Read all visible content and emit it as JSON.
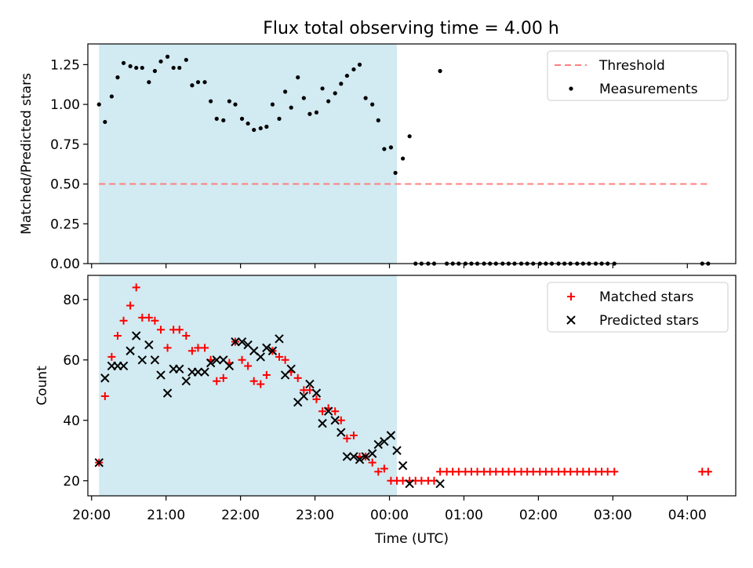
{
  "figure": {
    "title": "Flux total observing time = 4.00 h"
  },
  "colors": {
    "band": "#add8e6",
    "threshold": "#ff7f7f",
    "matched": "#ff0000",
    "predicted": "#000000",
    "measurement": "#000000"
  },
  "chart_data": [
    {
      "type": "scatter",
      "panel": "top",
      "ylabel": "Matched/Predicted stars",
      "ylim": [
        0,
        1.38
      ],
      "yticks": [
        "0.00",
        "0.25",
        "0.50",
        "0.75",
        "1.00",
        "1.25"
      ],
      "ytick_values": [
        0,
        0.25,
        0.5,
        0.75,
        1.0,
        1.25
      ],
      "xlim": [
        19.95,
        28.65
      ],
      "observing_window": [
        20.1,
        24.1
      ],
      "legend_position": "top-right",
      "threshold": {
        "name": "Threshold",
        "value": 0.5,
        "x_range": [
          20.1,
          28.3
        ],
        "style": "dashed"
      },
      "series": [
        {
          "name": "Measurements",
          "x": [
            20.1,
            20.18,
            20.27,
            20.35,
            20.43,
            20.52,
            20.6,
            20.68,
            20.77,
            20.85,
            20.93,
            21.02,
            21.1,
            21.18,
            21.27,
            21.35,
            21.43,
            21.52,
            21.6,
            21.68,
            21.77,
            21.85,
            21.93,
            22.02,
            22.1,
            22.18,
            22.27,
            22.35,
            22.43,
            22.52,
            22.6,
            22.68,
            22.77,
            22.85,
            22.93,
            23.02,
            23.1,
            23.18,
            23.27,
            23.35,
            23.43,
            23.52,
            23.6,
            23.68,
            23.77,
            23.85,
            23.93,
            24.02,
            24.08,
            24.18,
            24.27,
            24.35,
            24.43,
            24.52,
            24.6,
            24.68,
            24.77,
            24.85,
            24.93,
            25.02,
            25.1,
            25.18,
            25.27,
            25.35,
            25.43,
            25.52,
            25.6,
            25.68,
            25.77,
            25.85,
            25.93,
            26.02,
            26.1,
            26.18,
            26.27,
            26.35,
            26.43,
            26.52,
            26.6,
            26.68,
            26.77,
            26.85,
            26.93,
            27.02,
            28.2,
            28.28
          ],
          "y": [
            1.0,
            0.89,
            1.05,
            1.17,
            1.26,
            1.24,
            1.23,
            1.23,
            1.14,
            1.21,
            1.27,
            1.3,
            1.23,
            1.23,
            1.28,
            1.12,
            1.14,
            1.14,
            1.02,
            0.91,
            0.9,
            1.02,
            1.0,
            0.91,
            0.88,
            0.84,
            0.85,
            0.86,
            1.0,
            0.91,
            1.08,
            0.98,
            1.17,
            1.04,
            0.94,
            0.95,
            1.1,
            1.02,
            1.07,
            1.13,
            1.18,
            1.22,
            1.25,
            1.04,
            1.0,
            0.9,
            0.72,
            0.73,
            0.57,
            0.66,
            0.8,
            0.0,
            0.0,
            0.0,
            0.0,
            1.21,
            0.0,
            0.0,
            0.0,
            0.0,
            0.0,
            0.0,
            0.0,
            0.0,
            0.0,
            0.0,
            0.0,
            0.0,
            0.0,
            0.0,
            0.0,
            0.0,
            0.0,
            0.0,
            0.0,
            0.0,
            0.0,
            0.0,
            0.0,
            0.0,
            0.0,
            0.0,
            0.0,
            0.0,
            0.0,
            0.0
          ]
        }
      ],
      "legend": [
        "Threshold",
        "Measurements"
      ]
    },
    {
      "type": "scatter",
      "panel": "bottom",
      "ylabel": "Count",
      "xlabel": "Time (UTC)",
      "ylim": [
        15,
        88
      ],
      "yticks": [
        "20",
        "40",
        "60",
        "80"
      ],
      "ytick_values": [
        20,
        40,
        60,
        80
      ],
      "xlim": [
        19.95,
        28.65
      ],
      "xtick_values": [
        20,
        21,
        22,
        23,
        24,
        25,
        26,
        27,
        28
      ],
      "xticks": [
        "20:00",
        "21:00",
        "22:00",
        "23:00",
        "00:00",
        "01:00",
        "02:00",
        "03:00",
        "04:00"
      ],
      "observing_window": [
        20.1,
        24.1
      ],
      "legend_position": "top-right",
      "series": [
        {
          "name": "Matched stars",
          "marker": "+",
          "x": [
            20.1,
            20.18,
            20.27,
            20.35,
            20.43,
            20.52,
            20.6,
            20.68,
            20.77,
            20.85,
            20.93,
            21.02,
            21.1,
            21.18,
            21.27,
            21.35,
            21.43,
            21.52,
            21.6,
            21.68,
            21.77,
            21.85,
            21.93,
            22.02,
            22.1,
            22.18,
            22.27,
            22.35,
            22.43,
            22.52,
            22.6,
            22.68,
            22.77,
            22.85,
            22.93,
            23.02,
            23.1,
            23.18,
            23.27,
            23.35,
            23.43,
            23.52,
            23.6,
            23.68,
            23.77,
            23.85,
            23.93,
            24.02,
            24.1,
            24.18,
            24.27,
            24.35,
            24.43,
            24.52,
            24.6,
            24.68,
            24.77,
            24.85,
            24.93,
            25.02,
            25.1,
            25.18,
            25.27,
            25.35,
            25.43,
            25.52,
            25.6,
            25.68,
            25.77,
            25.85,
            25.93,
            26.02,
            26.1,
            26.18,
            26.27,
            26.35,
            26.43,
            26.52,
            26.6,
            26.68,
            26.77,
            26.85,
            26.93,
            27.02,
            28.2,
            28.28
          ],
          "y": [
            26,
            48,
            61,
            68,
            73,
            78,
            84,
            74,
            74,
            73,
            70,
            64,
            70,
            70,
            68,
            63,
            64,
            64,
            60,
            53,
            54,
            59,
            66,
            60,
            58,
            53,
            52,
            55,
            63,
            61,
            60,
            56,
            54,
            50,
            50,
            47,
            43,
            44,
            43,
            40,
            34,
            35,
            28,
            28,
            26,
            23,
            24,
            20,
            20,
            20,
            20,
            20,
            20,
            20,
            20,
            23,
            23,
            23,
            23,
            23,
            23,
            23,
            23,
            23,
            23,
            23,
            23,
            23,
            23,
            23,
            23,
            23,
            23,
            23,
            23,
            23,
            23,
            23,
            23,
            23,
            23,
            23,
            23,
            23,
            23,
            23
          ]
        },
        {
          "name": "Predicted stars",
          "marker": "x",
          "x": [
            20.1,
            20.18,
            20.27,
            20.35,
            20.43,
            20.52,
            20.6,
            20.68,
            20.77,
            20.85,
            20.93,
            21.02,
            21.1,
            21.18,
            21.27,
            21.35,
            21.43,
            21.52,
            21.6,
            21.68,
            21.77,
            21.85,
            21.93,
            22.02,
            22.1,
            22.18,
            22.27,
            22.35,
            22.43,
            22.52,
            22.6,
            22.68,
            22.77,
            22.85,
            22.93,
            23.02,
            23.1,
            23.18,
            23.27,
            23.35,
            23.43,
            23.52,
            23.6,
            23.68,
            23.77,
            23.85,
            23.93,
            24.02,
            24.1,
            24.18,
            24.27,
            24.68
          ],
          "y": [
            26,
            54,
            58,
            58,
            58,
            63,
            68,
            60,
            65,
            60,
            55,
            49,
            57,
            57,
            53,
            56,
            56,
            56,
            59,
            60,
            60,
            58,
            66,
            66,
            65,
            63,
            61,
            64,
            63,
            67,
            55,
            57,
            46,
            48,
            52,
            49,
            39,
            43,
            40,
            36,
            28,
            28,
            27,
            28,
            29,
            32,
            33,
            35,
            30,
            25,
            19,
            19
          ]
        }
      ],
      "legend": [
        "Matched stars",
        "Predicted stars"
      ]
    }
  ]
}
